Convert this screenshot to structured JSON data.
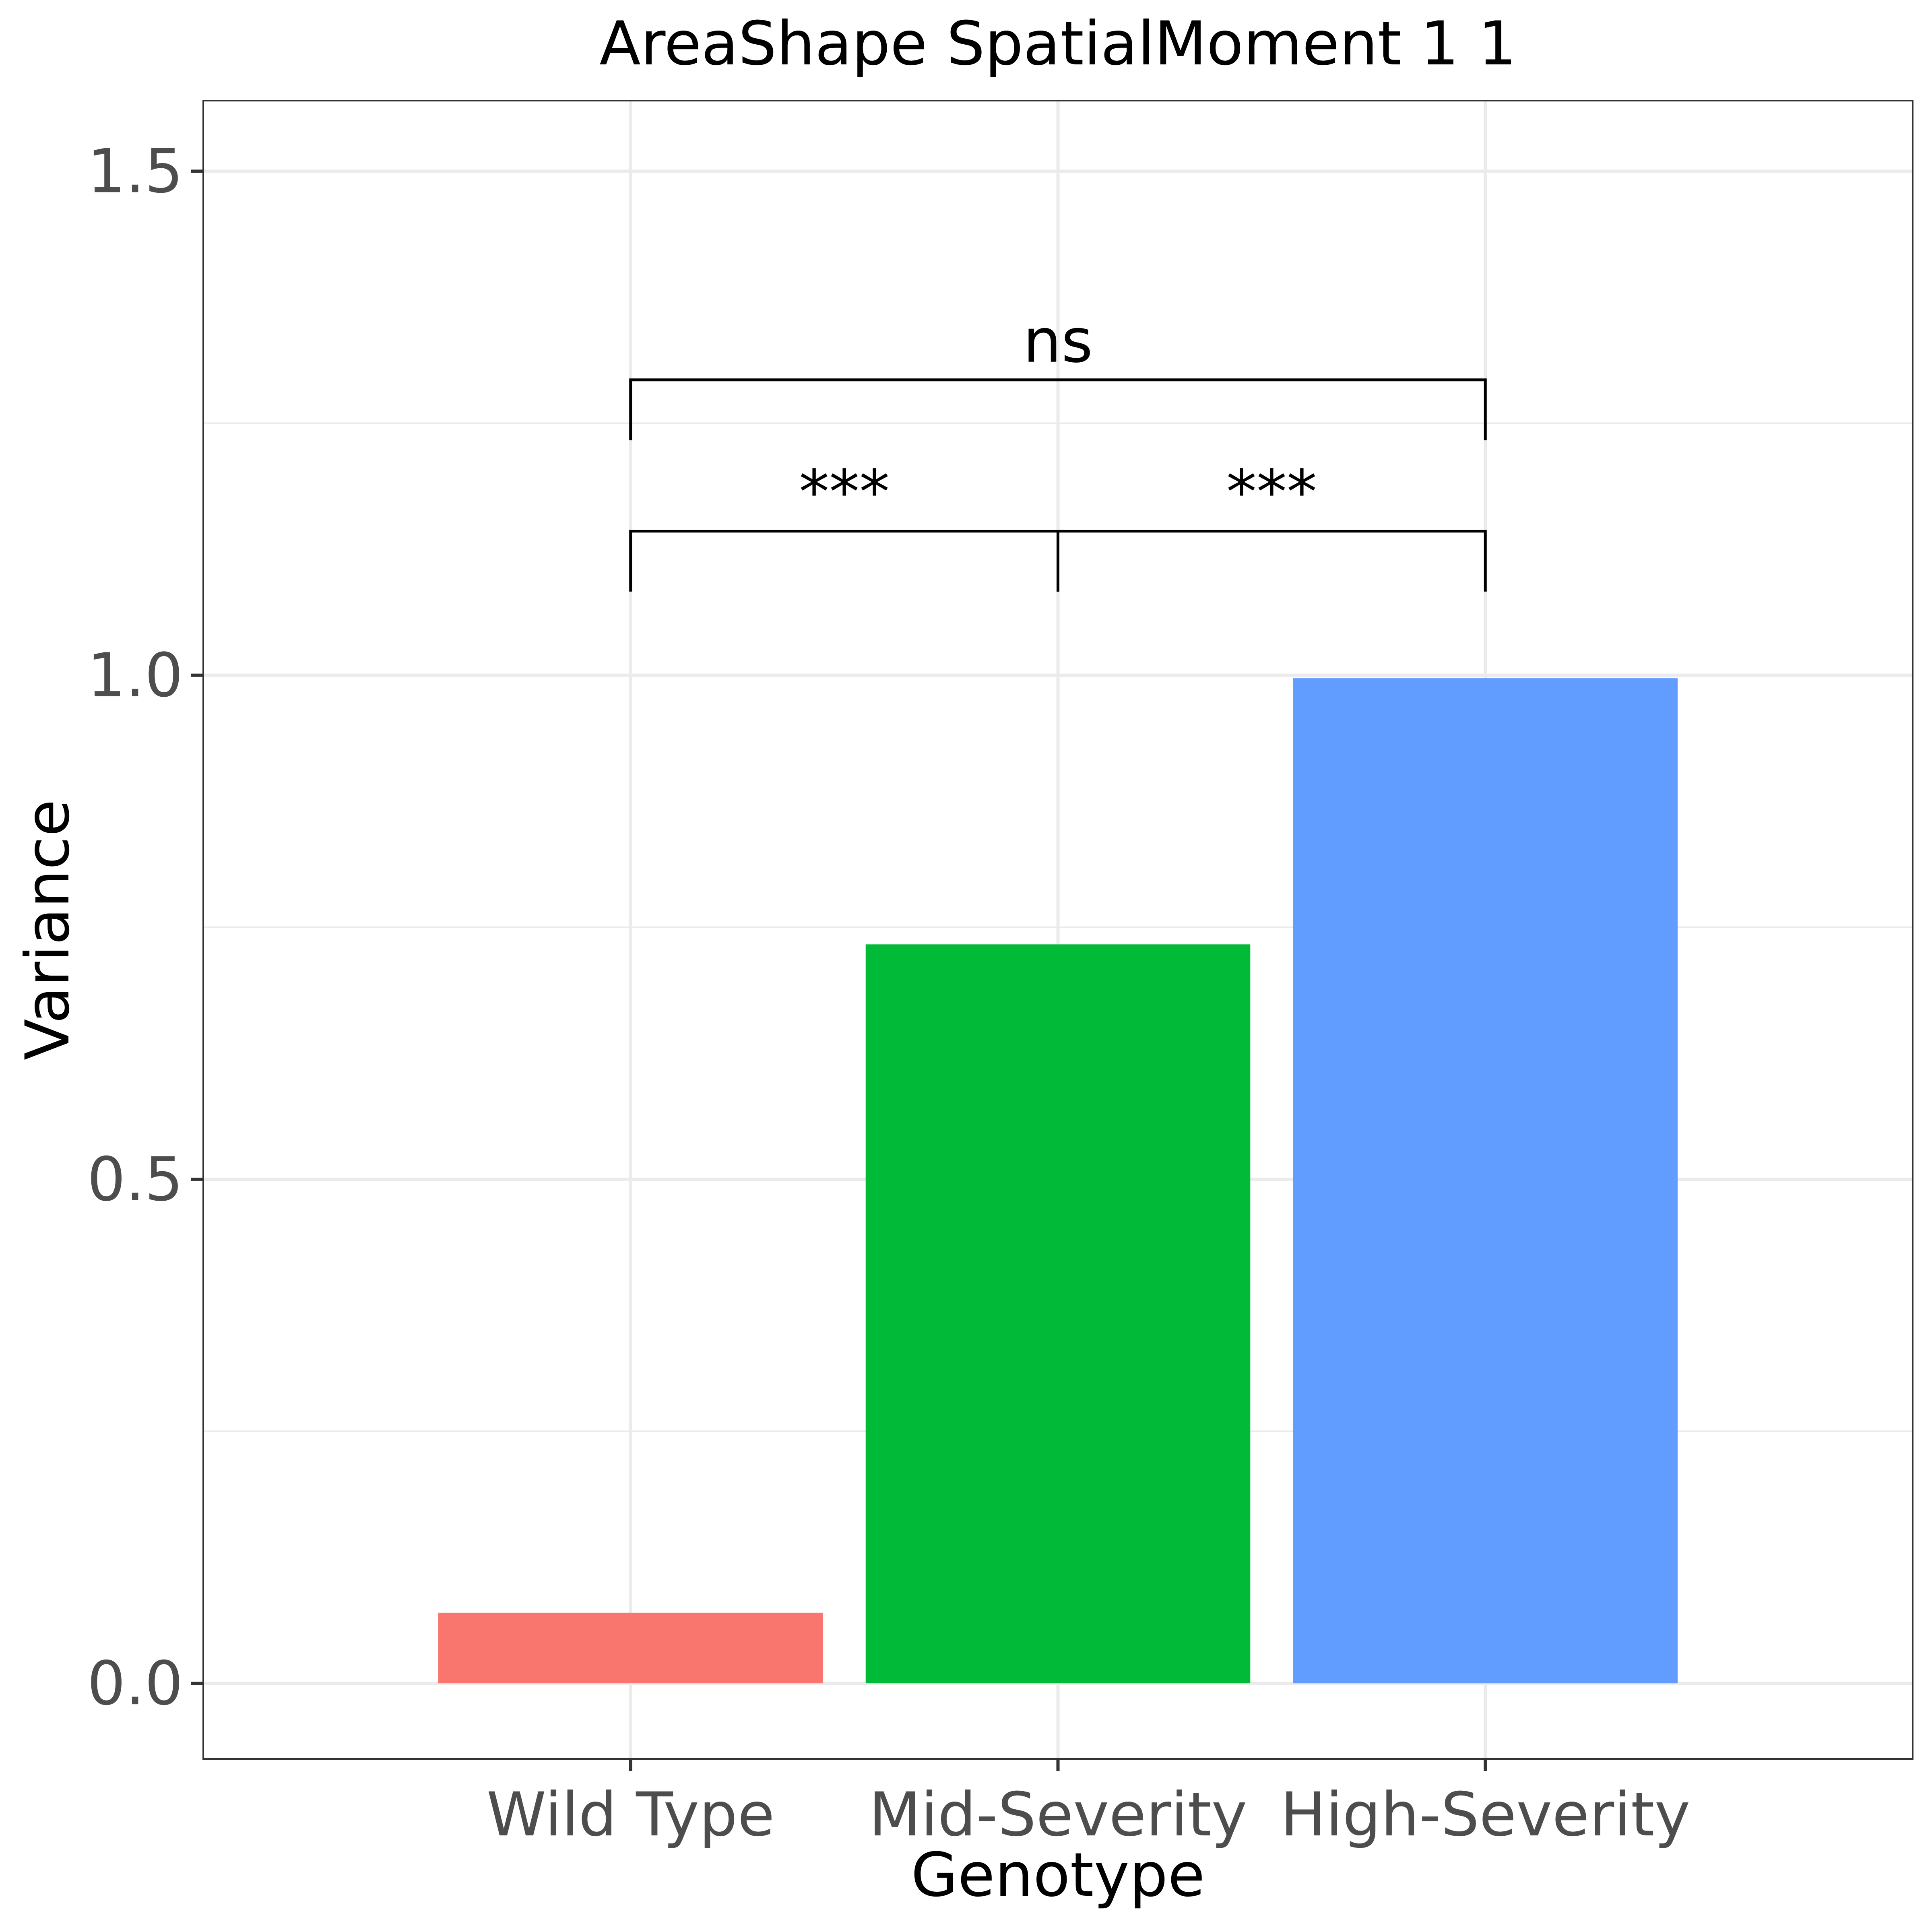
{
  "chart_data": {
    "type": "bar",
    "title": "AreaShape SpatialMoment 1 1",
    "xlabel": "Genotype",
    "ylabel": "Variance",
    "categories": [
      "Wild Type",
      "Mid-Severity",
      "High-Severity"
    ],
    "values": [
      0.07,
      0.733,
      0.997
    ],
    "colors": [
      "#F8766D",
      "#00BA38",
      "#619CFF"
    ],
    "ylim": [
      -0.075,
      1.57
    ],
    "yticks": [
      0.0,
      0.5,
      1.0,
      1.5
    ],
    "ytick_labels": [
      "0.0",
      "0.5",
      "1.0",
      "1.5"
    ],
    "grid": true,
    "legend": "none",
    "significance": [
      {
        "from": 0,
        "to": 1,
        "y": 1.143,
        "label": "***"
      },
      {
        "from": 1,
        "to": 2,
        "y": 1.143,
        "label": "***"
      },
      {
        "from": 0,
        "to": 2,
        "y": 1.293,
        "label": "ns"
      }
    ]
  }
}
